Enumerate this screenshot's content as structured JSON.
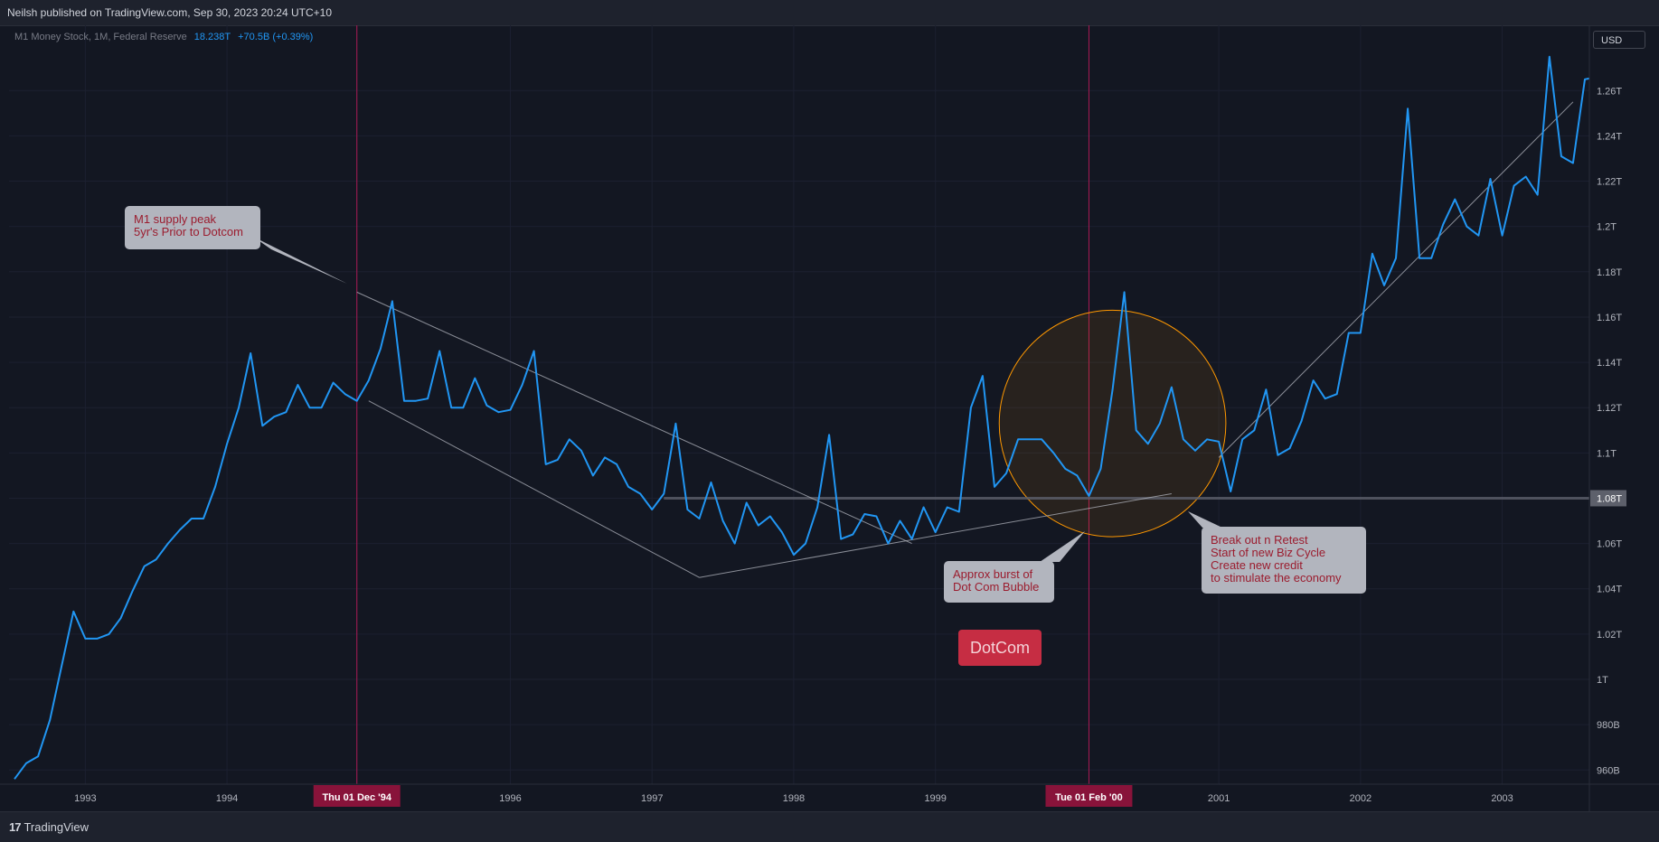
{
  "header": {
    "publish_info": "Neilsh published on TradingView.com, Sep 30, 2023 20:24 UTC+10"
  },
  "footer": {
    "logo_text": "TradingView",
    "logo_mark": "17"
  },
  "legend": {
    "symbol": "M1 Money Stock, 1M, Federal Reserve",
    "value": "18.238T",
    "change": "+70.5B (+0.39%)"
  },
  "currency": "USD",
  "colors": {
    "background": "#131722",
    "series": "#2196f3",
    "vline": "#c2185b",
    "date_badge": "#88133a",
    "callout_bg": "#b2b5be",
    "callout_text": "#9b1c2e",
    "circle": "#ff9800",
    "trendline": "#b2b5be",
    "dotcom": "#c62d43"
  },
  "annotations": {
    "m1_peak": "M1 supply peak\n5yr's Prior to Dotcom",
    "dotcom_burst": "Approx burst of\nDot Com Bubble",
    "breakout": "Break out n Retest\nStart of new Biz Cycle\nCreate new credit\nto stimulate the economy",
    "dotcom_label": "DotCom"
  },
  "chart_data": {
    "type": "line",
    "series": [
      {
        "values": [
          956,
          963,
          966,
          982,
          1006,
          1030,
          1018,
          1018,
          1020,
          1027,
          1039,
          1050,
          1053,
          1060,
          1066,
          1071,
          1071,
          1085,
          1104,
          1120,
          1144,
          1112,
          1116,
          1118,
          1130,
          1120,
          1120,
          1131,
          1126,
          1123,
          1132,
          1146,
          1167,
          1123,
          1123,
          1124,
          1145,
          1120,
          1120,
          1133,
          1121,
          1118,
          1119,
          1130,
          1145,
          1095,
          1097,
          1106,
          1101,
          1090,
          1098,
          1095,
          1085,
          1082,
          1075,
          1082,
          1113,
          1075,
          1071,
          1087,
          1070,
          1060,
          1078,
          1068,
          1072,
          1065,
          1055,
          1060,
          1076,
          1108,
          1062,
          1064,
          1073,
          1072,
          1060,
          1070,
          1062,
          1076,
          1065,
          1076,
          1074,
          1120,
          1134,
          1085,
          1091,
          1106,
          1106,
          1106,
          1100,
          1093,
          1090,
          1081,
          1093,
          1128,
          1171,
          1110,
          1104,
          1113,
          1129,
          1106,
          1101,
          1106,
          1105,
          1083,
          1106,
          1110,
          1128,
          1099,
          1102,
          1114,
          1132,
          1124,
          1126,
          1153,
          1153,
          1188,
          1174,
          1186,
          1252,
          1186,
          1186,
          1201,
          1212,
          1200,
          1196,
          1221,
          1196,
          1218,
          1222,
          1214,
          1275,
          1231,
          1228,
          1265,
          1266,
          1267,
          1290
        ]
      }
    ],
    "x_start": "1992-07",
    "interval": "1M",
    "x_ticks": [
      "1993",
      "1994",
      "Thu 01 Dec '94",
      "1996",
      "1997",
      "1998",
      "1999",
      "Tue 01 Feb '00",
      "2001",
      "2002",
      "2003"
    ],
    "highlighted_dates": [
      "1994-12",
      "2000-02"
    ],
    "y_ticks": [
      "960B",
      "980B",
      "1T",
      "1.02T",
      "1.04T",
      "1.06T",
      "1.08T",
      "1.1T",
      "1.12T",
      "1.14T",
      "1.16T",
      "1.18T",
      "1.2T",
      "1.22T",
      "1.24T",
      "1.26T"
    ],
    "ylim": [
      954,
      1288
    ],
    "y_unit": "B",
    "horizontal_line": {
      "value": 1080,
      "label": "1.08T",
      "from": "1997-02"
    },
    "trendlines": [
      {
        "from": [
          "1994-12",
          1171
        ],
        "to": [
          "1998-11",
          1060
        ]
      },
      {
        "from": [
          "1995-01",
          1123
        ],
        "to": [
          "1997-05",
          1045
        ]
      },
      {
        "from": [
          "1997-05",
          1045
        ],
        "to": [
          "2000-09",
          1082
        ]
      },
      {
        "from": [
          "2001-01",
          1098
        ],
        "to": [
          "2003-07",
          1255
        ]
      }
    ],
    "circle": {
      "center": [
        "2000-04",
        1113
      ],
      "radius_y": 50
    },
    "grid": true
  }
}
